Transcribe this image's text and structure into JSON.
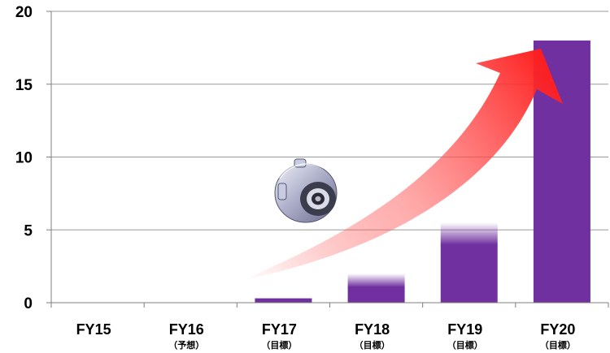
{
  "chart_data": {
    "type": "bar",
    "categories": [
      "FY15",
      "FY16",
      "FY17",
      "FY18",
      "FY19",
      "FY20"
    ],
    "sublabels": [
      "",
      "（予想）",
      "（目標）",
      "（目標）",
      "（目標）",
      "（目標）"
    ],
    "values": [
      0,
      0,
      0.3,
      2,
      5.5,
      18
    ],
    "faded_tops": [
      null,
      null,
      null,
      1.1,
      4.0,
      null
    ],
    "ylim": [
      0,
      20
    ],
    "yticks": [
      0,
      5,
      10,
      15,
      20
    ],
    "grid": true,
    "legend": "none",
    "bar_color": "#7030a0",
    "arrow_color": "#ff1a1a",
    "title": "",
    "xlabel": "",
    "ylabel": ""
  },
  "ytick_labels": [
    "0",
    "5",
    "10",
    "15",
    "20"
  ],
  "motor_image_icon": "motor-image-icon"
}
